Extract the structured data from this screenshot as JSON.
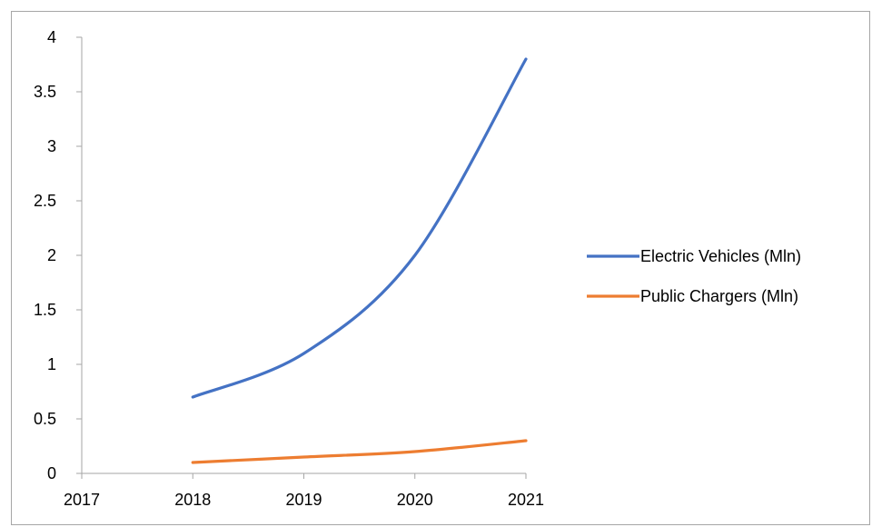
{
  "chart_data": {
    "type": "line",
    "x": [
      2018,
      2019,
      2020,
      2021
    ],
    "xticks": [
      "2017",
      "2018",
      "2019",
      "2020",
      "2021"
    ],
    "xlim": [
      2017,
      2021
    ],
    "ylim": [
      0,
      4
    ],
    "yticks": [
      "0",
      "0.5",
      "1",
      "1.5",
      "2",
      "2.5",
      "3",
      "3.5",
      "4"
    ],
    "grid": false,
    "legend_position": "right",
    "smooth": true,
    "series": [
      {
        "name": "Electric Vehicles (Mln)",
        "color": "#4472c4",
        "values": [
          0.7,
          1.1,
          2.0,
          3.8
        ]
      },
      {
        "name": "Public Chargers (Mln)",
        "color": "#ed7d31",
        "values": [
          0.1,
          0.15,
          0.2,
          0.3
        ]
      }
    ]
  }
}
